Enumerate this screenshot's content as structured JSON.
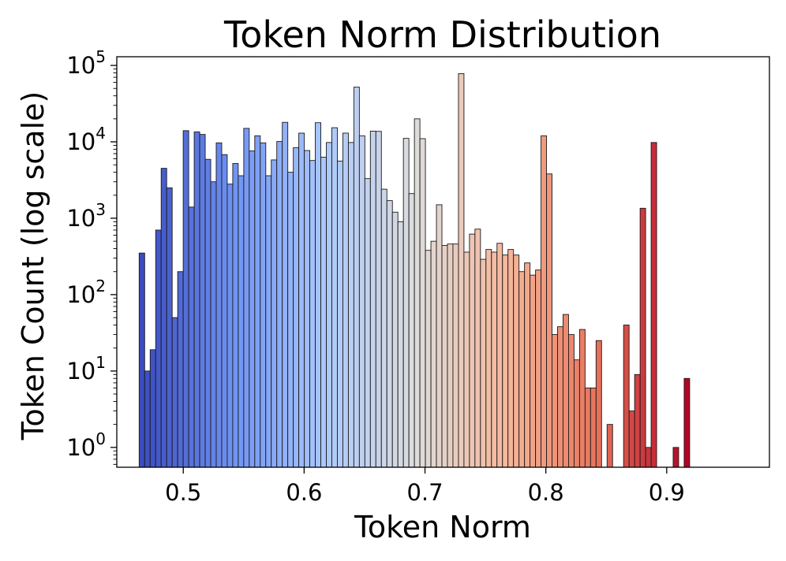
{
  "chart_data": {
    "type": "bar",
    "title": "Token Norm Distribution",
    "xlabel": "Token Norm",
    "ylabel": "Token Count (log scale)",
    "y_scale": "log",
    "xlim": [
      0.445,
      0.985
    ],
    "ylim": [
      0.55,
      130000
    ],
    "grid": false,
    "legend": "none",
    "colormap": "coolwarm",
    "colormap_stops": [
      "#3b4cc0",
      "#6f92f3",
      "#aac7fd",
      "#dddddd",
      "#f7b89c",
      "#e7745b",
      "#b40426"
    ],
    "x_ticks": [
      {
        "value": 0.5,
        "label": "0.5"
      },
      {
        "value": 0.6,
        "label": "0.6"
      },
      {
        "value": 0.7,
        "label": "0.7"
      },
      {
        "value": 0.8,
        "label": "0.8"
      },
      {
        "value": 0.9,
        "label": "0.9"
      }
    ],
    "y_ticks": [
      {
        "value": 1,
        "base": "10",
        "exp": "0"
      },
      {
        "value": 10,
        "base": "10",
        "exp": "1"
      },
      {
        "value": 100,
        "base": "10",
        "exp": "2"
      },
      {
        "value": 1000,
        "base": "10",
        "exp": "3"
      },
      {
        "value": 10000,
        "base": "10",
        "exp": "4"
      },
      {
        "value": 100000,
        "base": "10",
        "exp": "5"
      }
    ],
    "bin_start": 0.4635,
    "bin_width": 0.004555,
    "values": [
      350,
      10,
      19,
      700,
      4500,
      2500,
      50,
      200,
      14000,
      1400,
      13500,
      12500,
      5900,
      3000,
      9700,
      6800,
      2800,
      5200,
      3600,
      15000,
      7600,
      12000,
      9700,
      3600,
      5800,
      10100,
      18000,
      4000,
      8400,
      13000,
      7700,
      5700,
      17800,
      6300,
      9800,
      15300,
      5600,
      13000,
      9800,
      52000,
      12000,
      3300,
      13800,
      13700,
      2400,
      1700,
      1200,
      900,
      11100,
      2100,
      20000,
      11000,
      380,
      500,
      1500,
      440,
      460,
      460,
      78000,
      360,
      620,
      720,
      290,
      390,
      360,
      470,
      330,
      390,
      330,
      200,
      260,
      180,
      210,
      12000,
      3800,
      30,
      38,
      55,
      30,
      14,
      35,
      6,
      6,
      25,
      0,
      2,
      0,
      0,
      40,
      3,
      9,
      1350,
      1,
      9800,
      0,
      0,
      0,
      1,
      0,
      8
    ]
  }
}
